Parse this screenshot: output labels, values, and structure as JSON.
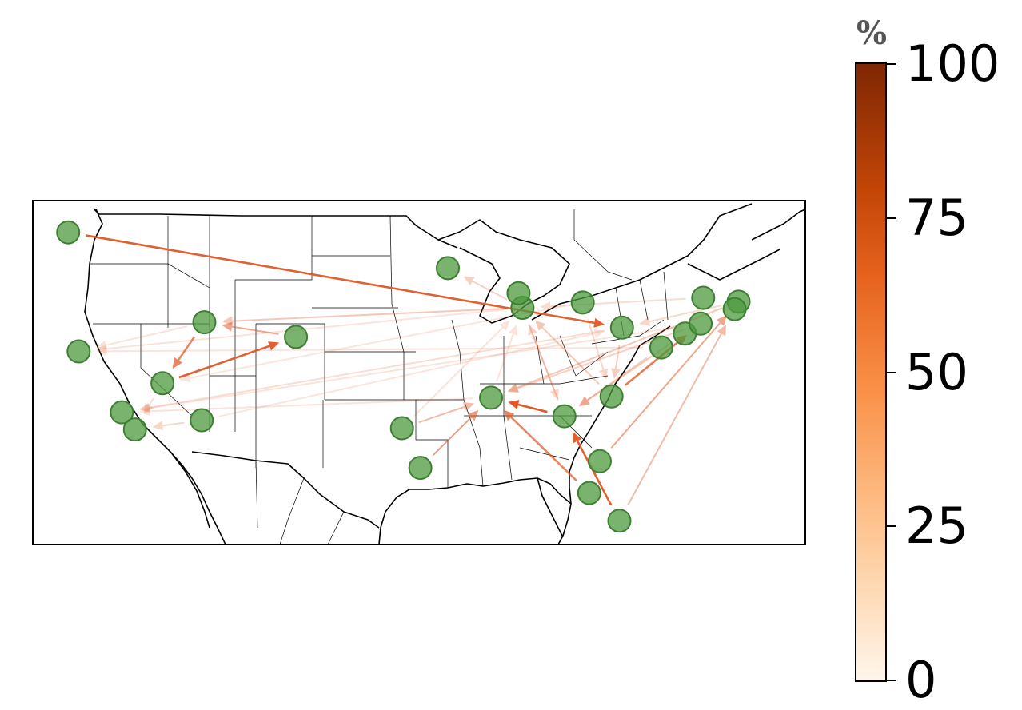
{
  "colorbar": {
    "unit": "%",
    "ticks": [
      "0",
      "25",
      "50",
      "75",
      "100"
    ],
    "colormap": [
      "#fff5eb",
      "#fdd9b4",
      "#fdb97f",
      "#f98e45",
      "#e5611c",
      "#c24506",
      "#7f2704"
    ]
  },
  "colors": {
    "node_fill": "#4e9a3e",
    "node_stroke": "#3f7f33",
    "arrow": "#e05a28",
    "border": "#000000"
  },
  "map": {
    "region": "contiguous-united-states",
    "projection": "lat-lon",
    "extent": {
      "lon": [
        -125,
        -66
      ],
      "lat": [
        24,
        50
      ]
    },
    "nodes": [
      {
        "id": "seattle",
        "lon": -122.3,
        "lat": 47.6
      },
      {
        "id": "sacramento",
        "lon": -121.5,
        "lat": 38.6
      },
      {
        "id": "los-angeles",
        "lon": -118.2,
        "lat": 34.0
      },
      {
        "id": "san-diego",
        "lon": -117.2,
        "lat": 32.7
      },
      {
        "id": "las-vegas",
        "lon": -115.1,
        "lat": 36.2
      },
      {
        "id": "salt-lake-city",
        "lon": -111.9,
        "lat": 40.8
      },
      {
        "id": "phoenix",
        "lon": -112.1,
        "lat": 33.4
      },
      {
        "id": "denver",
        "lon": -104.9,
        "lat": 39.7
      },
      {
        "id": "dallas",
        "lon": -96.8,
        "lat": 32.8
      },
      {
        "id": "houston",
        "lon": -95.4,
        "lat": 29.8
      },
      {
        "id": "minneapolis",
        "lon": -93.3,
        "lat": 44.9
      },
      {
        "id": "memphis",
        "lon": -90.0,
        "lat": 35.1
      },
      {
        "id": "chicago",
        "lon": -87.6,
        "lat": 41.9
      },
      {
        "id": "milwaukee",
        "lon": -87.9,
        "lat": 43.0
      },
      {
        "id": "detroit",
        "lon": -83.0,
        "lat": 42.3
      },
      {
        "id": "atlanta",
        "lon": -84.4,
        "lat": 33.7
      },
      {
        "id": "charlotte",
        "lon": -80.8,
        "lat": 35.2
      },
      {
        "id": "pittsburgh",
        "lon": -80.0,
        "lat": 40.4
      },
      {
        "id": "washington",
        "lon": -77.0,
        "lat": 38.9
      },
      {
        "id": "philadelphia",
        "lon": -75.2,
        "lat": 39.95
      },
      {
        "id": "new-york",
        "lon": -74.0,
        "lat": 40.7
      },
      {
        "id": "albany",
        "lon": -73.8,
        "lat": 42.65
      },
      {
        "id": "boston",
        "lon": -71.1,
        "lat": 42.36
      },
      {
        "id": "providence",
        "lon": -71.4,
        "lat": 41.8
      },
      {
        "id": "tampa",
        "lon": -82.5,
        "lat": 27.9
      },
      {
        "id": "jacksonville",
        "lon": -81.7,
        "lat": 30.3
      },
      {
        "id": "miami",
        "lon": -80.2,
        "lat": 25.8
      }
    ],
    "flows": [
      {
        "from": "seattle",
        "to": "pittsburgh",
        "percent": 72
      },
      {
        "from": "las-vegas",
        "to": "denver",
        "percent": 72
      },
      {
        "from": "salt-lake-city",
        "to": "las-vegas",
        "percent": 55
      },
      {
        "from": "denver",
        "to": "salt-lake-city",
        "percent": 40
      },
      {
        "from": "miami",
        "to": "atlanta",
        "percent": 72
      },
      {
        "from": "tampa",
        "to": "memphis",
        "percent": 55
      },
      {
        "from": "atlanta",
        "to": "memphis",
        "percent": 80
      },
      {
        "from": "charlotte",
        "to": "new-york",
        "percent": 60
      },
      {
        "from": "jacksonville",
        "to": "boston",
        "percent": 40
      },
      {
        "from": "miami",
        "to": "providence",
        "percent": 30
      },
      {
        "from": "houston",
        "to": "memphis",
        "percent": 45
      },
      {
        "from": "dallas",
        "to": "memphis",
        "percent": 30
      },
      {
        "from": "chicago",
        "to": "minneapolis",
        "percent": 20
      },
      {
        "from": "chicago",
        "to": "salt-lake-city",
        "percent": 25
      },
      {
        "from": "pittsburgh",
        "to": "los-angeles",
        "percent": 15
      },
      {
        "from": "washington",
        "to": "sacramento",
        "percent": 12
      },
      {
        "from": "new-york",
        "to": "los-angeles",
        "percent": 12
      },
      {
        "from": "chicago",
        "to": "sacramento",
        "percent": 12
      },
      {
        "from": "detroit",
        "to": "las-vegas",
        "percent": 10
      },
      {
        "from": "phoenix",
        "to": "pittsburgh",
        "percent": 10
      },
      {
        "from": "memphis",
        "to": "los-angeles",
        "percent": 12
      },
      {
        "from": "charlotte",
        "to": "chicago",
        "percent": 25
      },
      {
        "from": "atlanta",
        "to": "chicago",
        "percent": 20
      },
      {
        "from": "philadelphia",
        "to": "atlanta",
        "percent": 25
      },
      {
        "from": "boston",
        "to": "memphis",
        "percent": 25
      },
      {
        "from": "new-york",
        "to": "memphis",
        "percent": 20
      },
      {
        "from": "washington",
        "to": "atlanta",
        "percent": 22
      },
      {
        "from": "chicago",
        "to": "atlanta",
        "percent": 18
      },
      {
        "from": "detroit",
        "to": "charlotte",
        "percent": 18
      },
      {
        "from": "pittsburgh",
        "to": "charlotte",
        "percent": 22
      },
      {
        "from": "boston",
        "to": "pittsburgh",
        "percent": 18
      },
      {
        "from": "albany",
        "to": "chicago",
        "percent": 15
      },
      {
        "from": "memphis",
        "to": "chicago",
        "percent": 12
      },
      {
        "from": "las-vegas",
        "to": "san-diego",
        "percent": 15
      },
      {
        "from": "phoenix",
        "to": "san-diego",
        "percent": 18
      },
      {
        "from": "salt-lake-city",
        "to": "sacramento",
        "percent": 12
      },
      {
        "from": "dallas",
        "to": "chicago",
        "percent": 12
      }
    ]
  }
}
